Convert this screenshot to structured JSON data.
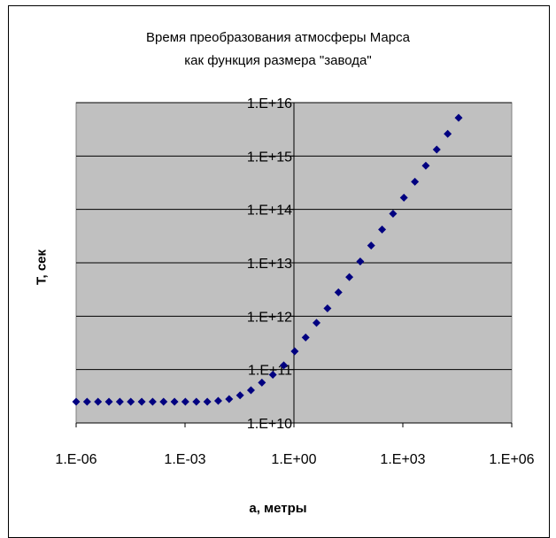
{
  "chart_data": {
    "type": "scatter",
    "title_line1": "Время преобразования атмосферы Марса",
    "title_line2": "как функция размера \"завода\"",
    "xlabel": "a, метры",
    "ylabel": "T, сек",
    "x_scale": "log",
    "y_scale": "log",
    "xlim": [
      1e-06,
      1000000.0
    ],
    "ylim": [
      10000000000.0,
      1e+16
    ],
    "x_tick_labels": [
      "1.E-06",
      "1.E-03",
      "1.E+00",
      "1.E+03",
      "1.E+06"
    ],
    "y_tick_labels": [
      "1.E+10",
      "1.E+11",
      "1.E+12",
      "1.E+13",
      "1.E+14",
      "1.E+15",
      "1.E+16"
    ],
    "grid": "horizontal",
    "legend": "none",
    "colors": {
      "plot_area": "#c0c0c0",
      "marker": "#000080",
      "gridline": "#000000"
    },
    "series": [
      {
        "marker": "diamond",
        "x": [
          1e-06,
          2e-06,
          4e-06,
          8e-06,
          1.6e-05,
          3.2e-05,
          6.4e-05,
          0.000128,
          0.000256,
          0.000512,
          0.00102,
          0.00205,
          0.0041,
          0.0082,
          0.0164,
          0.0328,
          0.0655,
          0.131,
          0.262,
          0.524,
          1.05,
          2.1,
          4.19,
          8.39,
          16.8,
          33.6,
          67.1,
          134.0,
          268.0,
          537.0,
          1070.0,
          2150.0,
          4290.0,
          8590.0,
          17200.0,
          34400.0
        ],
        "y": [
          25000000000.0,
          25000000000.0,
          25000000000.0,
          25000000000.0,
          25000000000.0,
          25000000000.0,
          25000000000.0,
          25000000000.0,
          25000000000.0,
          25000000000.0,
          25000000000.0,
          25000000000.0,
          25000000000.0,
          26000000000.0,
          28000000000.0,
          33000000000.0,
          41000000000.0,
          57000000000.0,
          80000000000.0,
          120000000000.0,
          220000000000.0,
          400000000000.0,
          750000000000.0,
          1400000000000.0,
          2800000000000.0,
          5400000000000.0,
          10600000000000.0,
          21000000000000.0,
          42000000000000.0,
          83000000000000.0,
          166000000000000.0,
          330000000000000.0,
          660000000000000.0,
          1320000000000000.0,
          2600000000000000.0,
          5200000000000000.0
        ]
      }
    ]
  }
}
